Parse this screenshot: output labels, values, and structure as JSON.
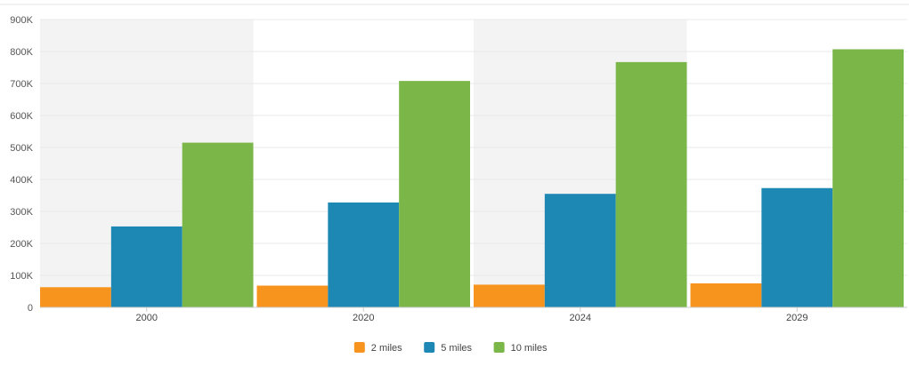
{
  "chart_data": {
    "type": "bar",
    "categories": [
      "2000",
      "2020",
      "2024",
      "2029"
    ],
    "series": [
      {
        "name": "2 miles",
        "color": "#f7941d",
        "values": [
          63000,
          68000,
          71000,
          75000
        ]
      },
      {
        "name": "5 miles",
        "color": "#1e88b4",
        "values": [
          253000,
          328000,
          355000,
          373000
        ]
      },
      {
        "name": "10 miles",
        "color": "#7ab648",
        "values": [
          515000,
          708000,
          767000,
          807000
        ]
      }
    ],
    "y_ticks": [
      "0",
      "100K",
      "200K",
      "300K",
      "400K",
      "500K",
      "600K",
      "700K",
      "800K",
      "900K"
    ],
    "ylim": [
      0,
      900000
    ],
    "grid": true,
    "legend_position": "bottom-center",
    "band_color": "#f3f3f3",
    "title": "",
    "xlabel": "",
    "ylabel": ""
  }
}
